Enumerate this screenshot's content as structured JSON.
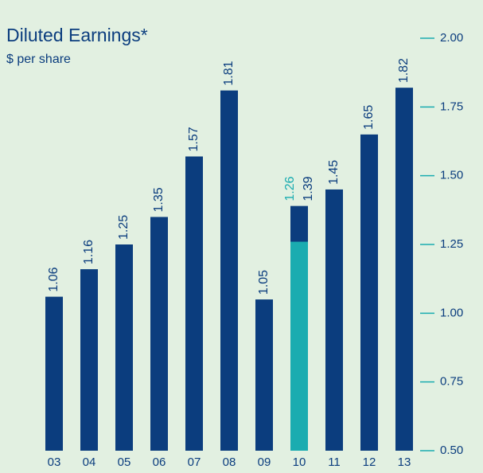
{
  "chart_data": {
    "type": "bar",
    "title": "Diluted Earnings*",
    "subtitle": "$ per share",
    "categories": [
      "03",
      "04",
      "05",
      "06",
      "07",
      "08",
      "09",
      "10",
      "11",
      "12",
      "13"
    ],
    "values": [
      1.06,
      1.16,
      1.25,
      1.35,
      1.57,
      1.81,
      1.05,
      1.39,
      1.45,
      1.65,
      1.82
    ],
    "color": "#0b3d7e",
    "overlay_values": [
      null,
      null,
      null,
      null,
      null,
      null,
      null,
      1.26,
      null,
      null,
      null
    ],
    "overlay_color": "#1aacb0",
    "ylim": [
      0.5,
      2.0
    ],
    "yticks": [
      {
        "value": 0.5,
        "label": "0.50"
      },
      0.75,
      {
        "value": 1.0,
        "label": "1.00"
      },
      1.25,
      {
        "value": 1.5,
        "label": "1.50"
      },
      1.75,
      {
        "value": 2.0,
        "label": "2.00"
      }
    ],
    "axis_side": "right"
  }
}
